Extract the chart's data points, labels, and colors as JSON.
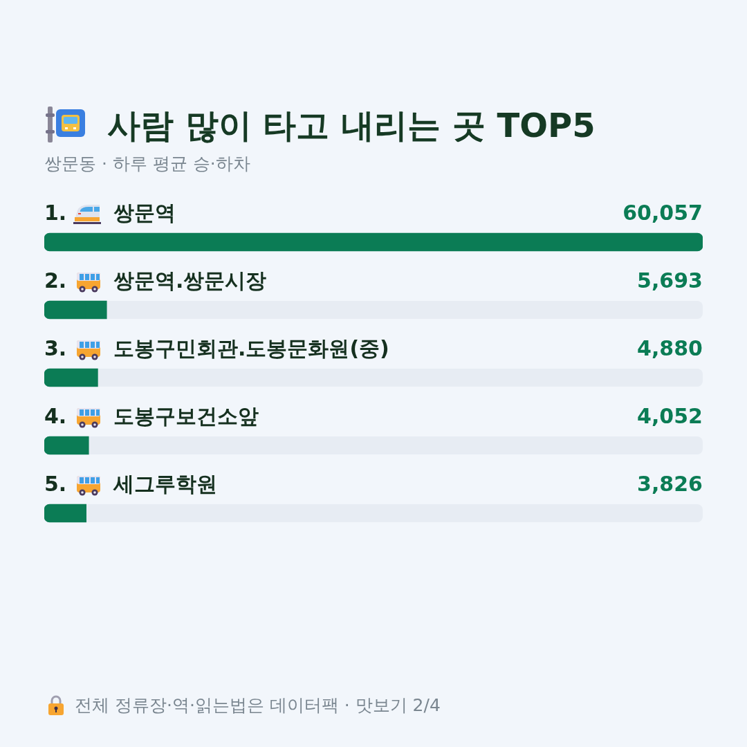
{
  "chart_data": {
    "type": "bar",
    "orientation": "horizontal",
    "title": "사람 많이 타고 내리는 곳 TOP5",
    "subtitle": "쌍문동 · 하루 평균 승·하차",
    "categories": [
      "1. 쌍문역",
      "2. 쌍문역.쌍문시장",
      "3. 도봉구민회관.도봉문화원(중)",
      "4. 도봉구보건소앞",
      "5. 세그루학원"
    ],
    "values": [
      60057,
      5693,
      4880,
      4052,
      3826
    ],
    "value_labels": [
      "60,057",
      "5,693",
      "4,880",
      "4,052",
      "3,826"
    ],
    "color": "#0b7c55",
    "xlim": [
      0,
      60057
    ],
    "tick_labels": "y",
    "annotations": [
      "전체 정류장·역·읽는법은 데이터팩 · 맛보기 2/4"
    ]
  }
}
